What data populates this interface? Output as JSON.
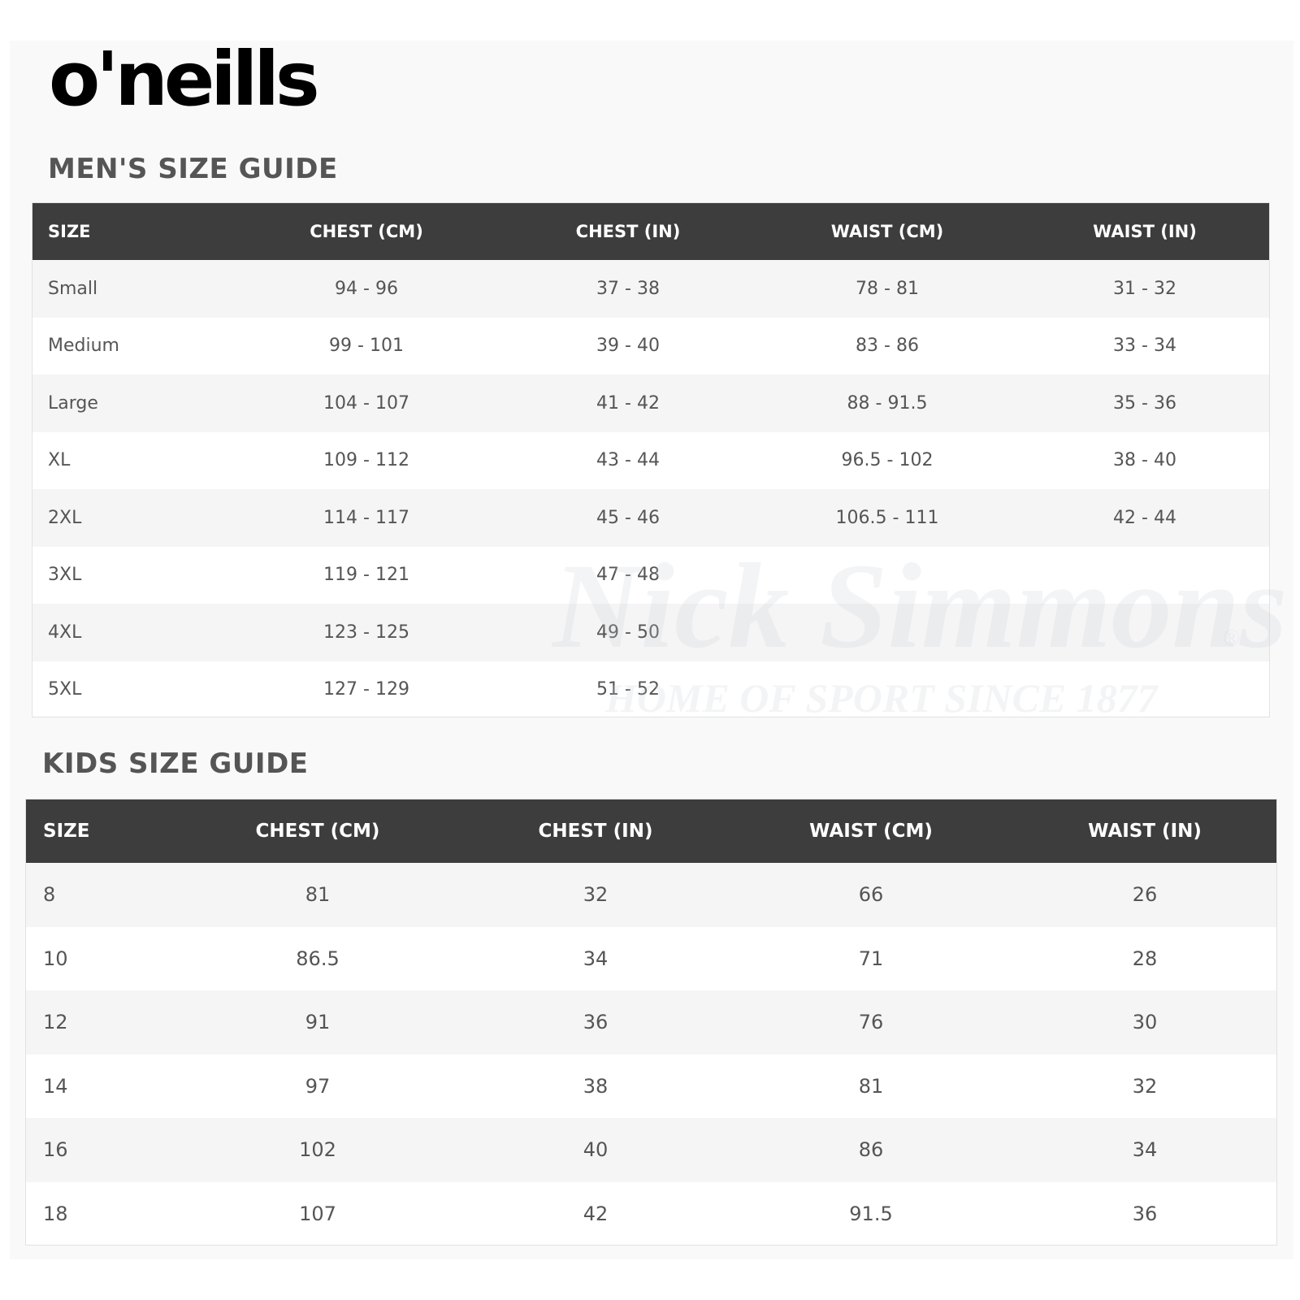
{
  "brand": {
    "logo_text": "o'neills"
  },
  "watermark": {
    "name": "Nick Simmons",
    "tagline": "HOME OF SPORT SINCE 1877",
    "mark": "®"
  },
  "mens": {
    "title": "MEN'S SIZE GUIDE",
    "headers": [
      "SIZE",
      "CHEST (CM)",
      "CHEST (IN)",
      "WAIST (CM)",
      "WAIST (IN)"
    ],
    "rows": [
      [
        "Small",
        "94 - 96",
        "37 - 38",
        "78 - 81",
        "31 - 32"
      ],
      [
        "Medium",
        "99 - 101",
        "39 - 40",
        "83 - 86",
        "33 - 34"
      ],
      [
        "Large",
        "104 - 107",
        "41 - 42",
        "88 - 91.5",
        "35 - 36"
      ],
      [
        "XL",
        "109 - 112",
        "43 - 44",
        "96.5 - 102",
        "38 - 40"
      ],
      [
        "2XL",
        "114 - 117",
        "45 - 46",
        "106.5 - 111",
        "42 - 44"
      ],
      [
        "3XL",
        "119 - 121",
        "47 - 48",
        "",
        ""
      ],
      [
        "4XL",
        "123 - 125",
        "49 - 50",
        "",
        ""
      ],
      [
        "5XL",
        "127 - 129",
        "51 - 52",
        "",
        ""
      ]
    ]
  },
  "kids": {
    "title": "KIDS SIZE GUIDE",
    "headers": [
      "SIZE",
      "CHEST (CM)",
      "CHEST (IN)",
      "WAIST (CM)",
      "WAIST (IN)"
    ],
    "rows": [
      [
        "8",
        "81",
        "32",
        "66",
        "26"
      ],
      [
        "10",
        "86.5",
        "34",
        "71",
        "28"
      ],
      [
        "12",
        "91",
        "36",
        "76",
        "30"
      ],
      [
        "14",
        "97",
        "38",
        "81",
        "32"
      ],
      [
        "16",
        "102",
        "40",
        "86",
        "34"
      ],
      [
        "18",
        "107",
        "42",
        "91.5",
        "36"
      ]
    ]
  }
}
